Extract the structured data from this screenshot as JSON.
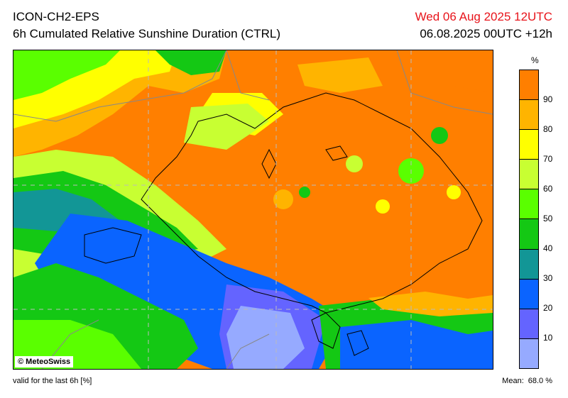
{
  "header": {
    "model": "ICON-CH2-EPS",
    "product": "6h Cumulated Relative Sunshine Duration (CTRL)",
    "valid_time": "Wed 06 Aug 2025 12UTC",
    "run_time": "06.08.2025 00UTC +12h"
  },
  "map": {
    "copyright": "© MeteoSwiss"
  },
  "legend": {
    "unit": "%",
    "colors": [
      "#ff7f00",
      "#ffb400",
      "#ffff00",
      "#c8ff32",
      "#5aff00",
      "#14c814",
      "#129696",
      "#0a64ff",
      "#6464ff",
      "#96aaff"
    ],
    "ticks": [
      "90",
      "80",
      "70",
      "60",
      "50",
      "40",
      "30",
      "20",
      "10"
    ]
  },
  "footer": {
    "note": "valid for the last 6h [%]",
    "mean_label": "Mean:",
    "mean_value": "68.0 %"
  }
}
